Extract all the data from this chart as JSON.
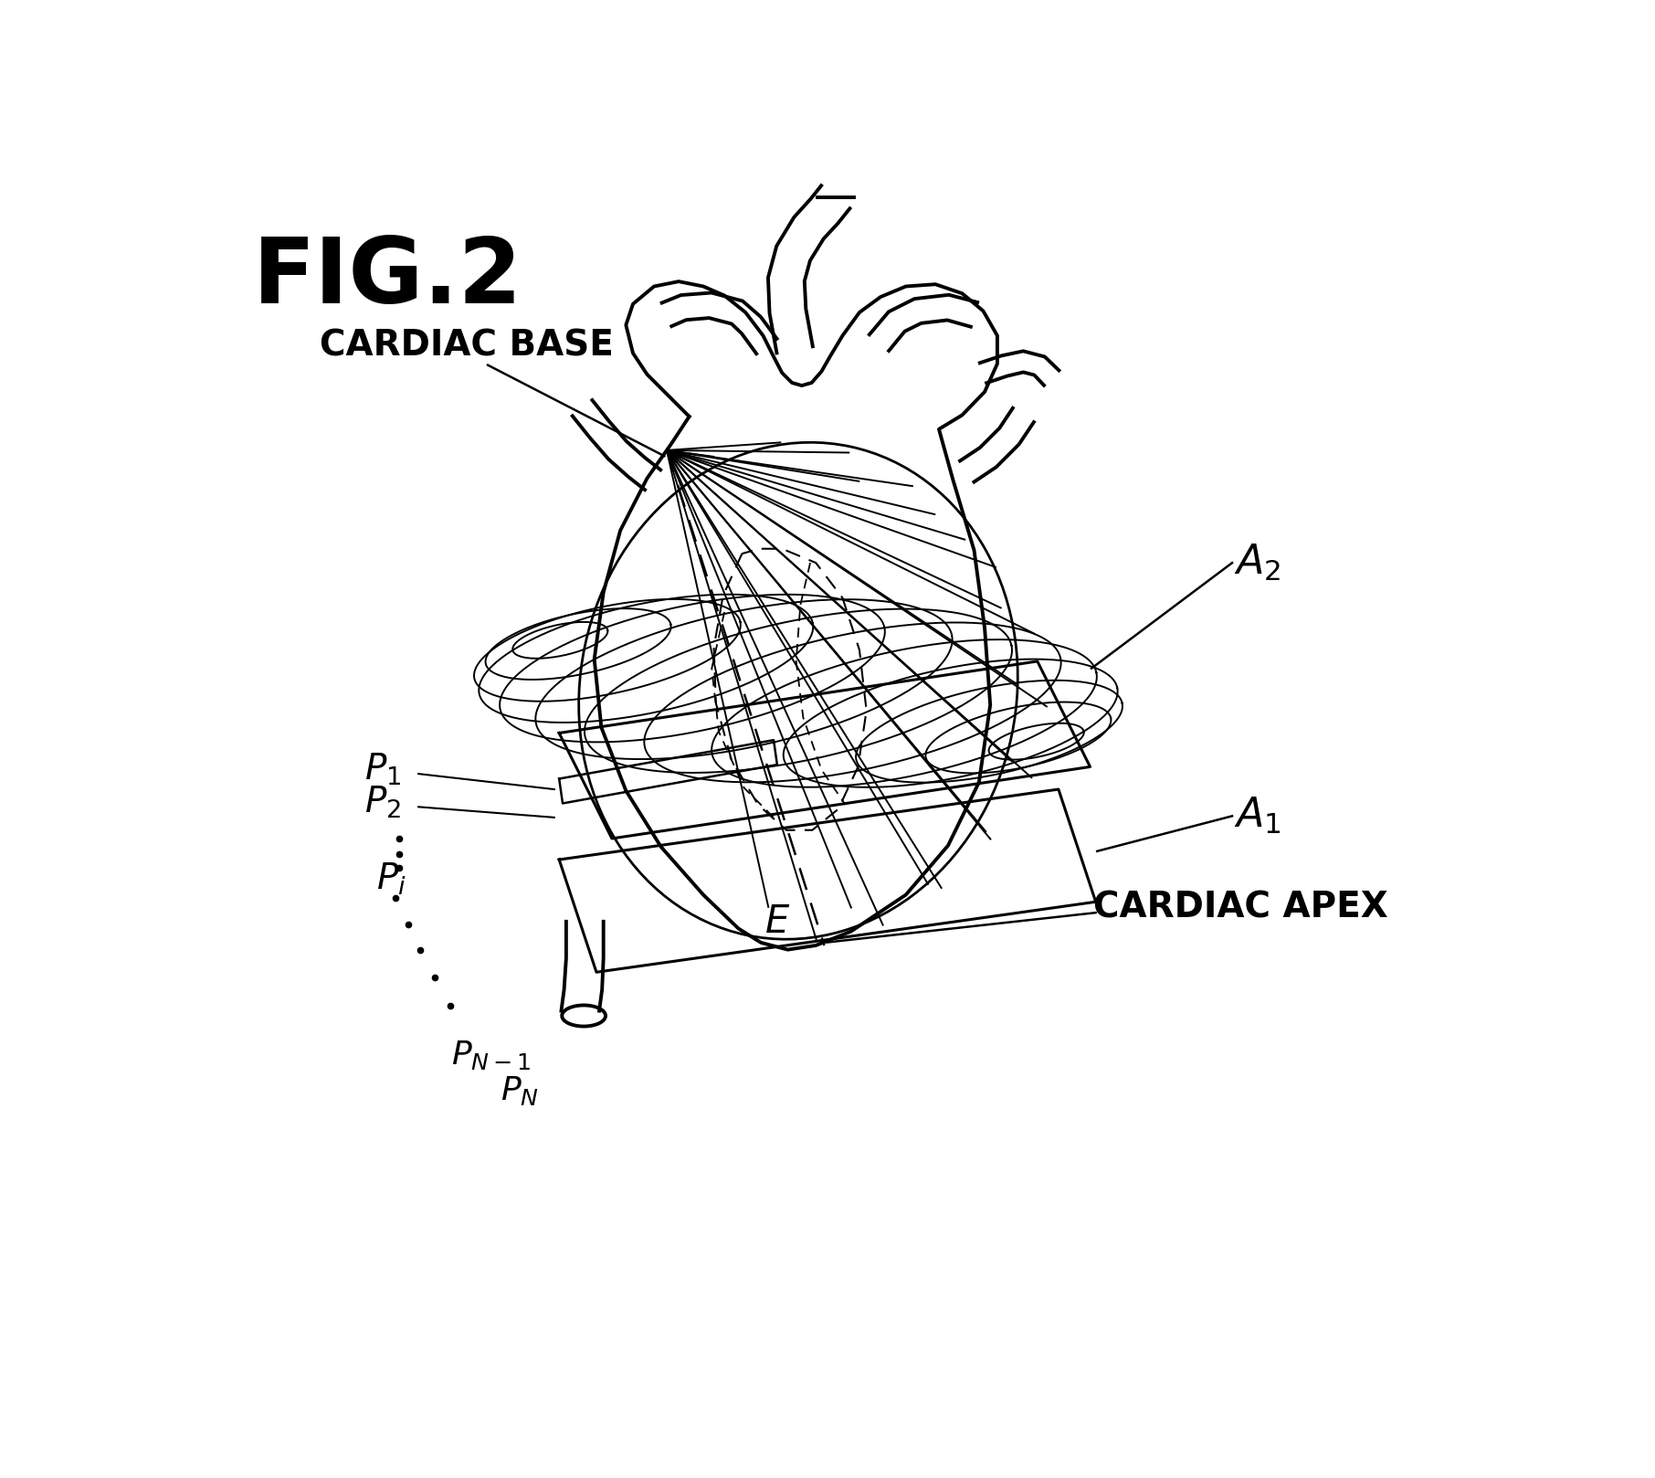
{
  "title": "FIG.2",
  "bg_color": "#ffffff",
  "text_color": "#000000",
  "fig_width": 18.12,
  "fig_height": 16.18,
  "lw_heart": 2.8,
  "lw_grid": 1.4,
  "lw_plane": 2.2,
  "label_fontsize": 28,
  "title_fontsize": 72,
  "subscript_fontsize": 32
}
